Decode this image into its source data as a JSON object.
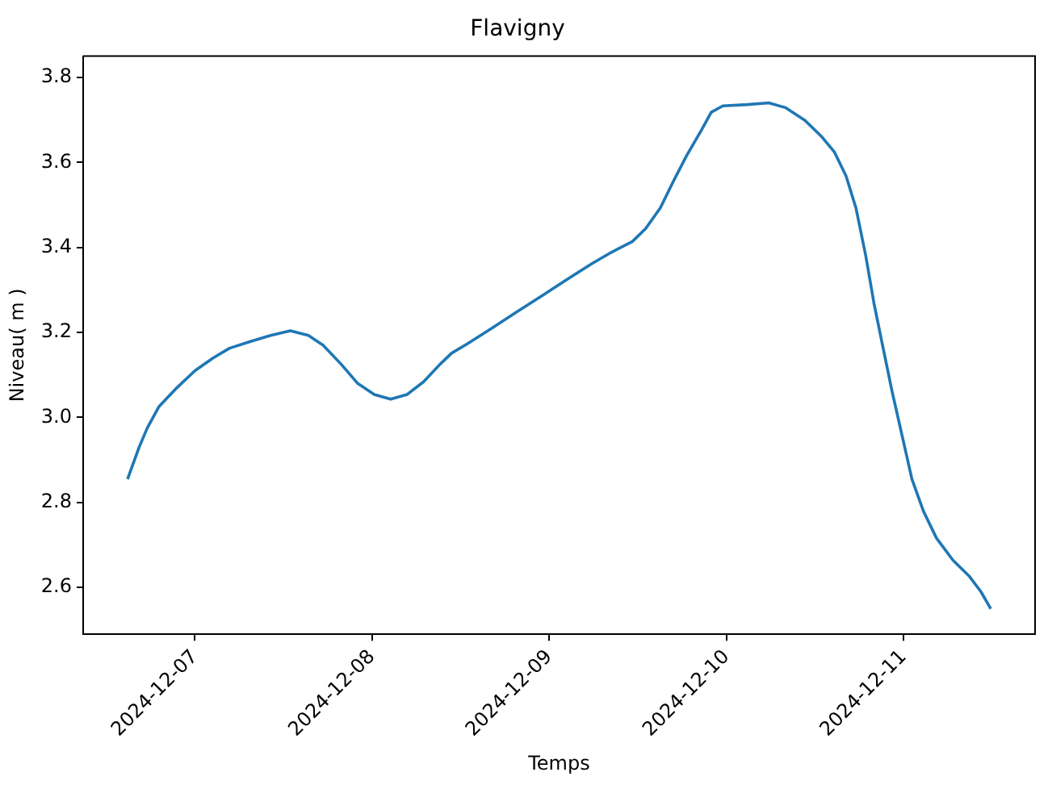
{
  "chart_data": {
    "type": "line",
    "title": "Flavigny",
    "xlabel": "Temps",
    "ylabel": "Niveau( m )",
    "x": [
      "2024-12-06T14:52",
      "2024-12-06T16:26",
      "2024-12-06T17:32",
      "2024-12-06T19:06",
      "2024-12-06T21:33",
      "2024-12-07T00:00",
      "2024-12-07T02:27",
      "2024-12-07T04:41",
      "2024-12-07T07:21",
      "2024-12-07T10:15",
      "2024-12-07T12:55",
      "2024-12-07T15:22",
      "2024-12-07T17:22",
      "2024-12-07T19:49",
      "2024-12-07T22:03",
      "2024-12-08T00:17",
      "2024-12-08T02:30",
      "2024-12-08T04:44",
      "2024-12-08T06:58",
      "2024-12-08T09:11",
      "2024-12-08T10:45",
      "2024-12-08T12:58",
      "2024-12-08T16:19",
      "2024-12-08T19:39",
      "2024-12-08T22:59",
      "2024-12-09T02:20",
      "2024-12-09T05:41",
      "2024-12-09T08:21",
      "2024-12-09T11:15",
      "2024-12-09T13:02",
      "2024-12-09T15:02",
      "2024-12-09T16:49",
      "2024-12-09T18:36",
      "2024-12-09T20:36",
      "2024-12-09T21:56",
      "2024-12-09T23:30",
      "2024-12-10T02:50",
      "2024-12-10T05:44",
      "2024-12-10T07:58",
      "2024-12-10T10:38",
      "2024-12-10T12:52",
      "2024-12-10T14:38",
      "2024-12-10T16:12",
      "2024-12-10T17:32",
      "2024-12-10T18:52",
      "2024-12-10T19:59",
      "2024-12-10T21:19",
      "2024-12-10T22:26",
      "2024-12-11T00:00",
      "2024-12-11T01:07",
      "2024-12-11T02:40",
      "2024-12-11T04:27",
      "2024-12-11T06:41",
      "2024-12-11T08:55",
      "2024-12-11T10:28",
      "2024-12-11T11:48"
    ],
    "series": [
      {
        "color": "#1f77b4",
        "values": [
          2.855,
          2.93,
          2.975,
          3.025,
          3.07,
          3.11,
          3.14,
          3.163,
          3.178,
          3.193,
          3.204,
          3.193,
          3.17,
          3.125,
          3.08,
          3.054,
          3.043,
          3.054,
          3.084,
          3.125,
          3.151,
          3.174,
          3.211,
          3.249,
          3.286,
          3.324,
          3.361,
          3.388,
          3.414,
          3.444,
          3.493,
          3.556,
          3.616,
          3.676,
          3.718,
          3.733,
          3.736,
          3.74,
          3.729,
          3.699,
          3.661,
          3.624,
          3.568,
          3.493,
          3.38,
          3.268,
          3.155,
          3.061,
          2.941,
          2.855,
          2.78,
          2.716,
          2.664,
          2.626,
          2.59,
          2.55
        ]
      }
    ],
    "xlim": [
      "2024-12-06T08:51",
      "2024-12-11T17:48"
    ],
    "xticks": [
      "2024-12-07",
      "2024-12-08",
      "2024-12-09",
      "2024-12-10",
      "2024-12-11"
    ],
    "ylim": [
      2.49,
      3.85
    ],
    "yticks": [
      {
        "value": 2.6,
        "label": "2.6"
      },
      {
        "value": 2.8,
        "label": "2.8"
      },
      {
        "value": 3.0,
        "label": "3.0"
      },
      {
        "value": 3.2,
        "label": "3.2"
      },
      {
        "value": 3.4,
        "label": "3.4"
      },
      {
        "value": 3.6,
        "label": "3.6"
      },
      {
        "value": 3.8,
        "label": "3.8"
      }
    ],
    "grid": false,
    "legend": false,
    "marker": "none",
    "line_style": "solid"
  }
}
